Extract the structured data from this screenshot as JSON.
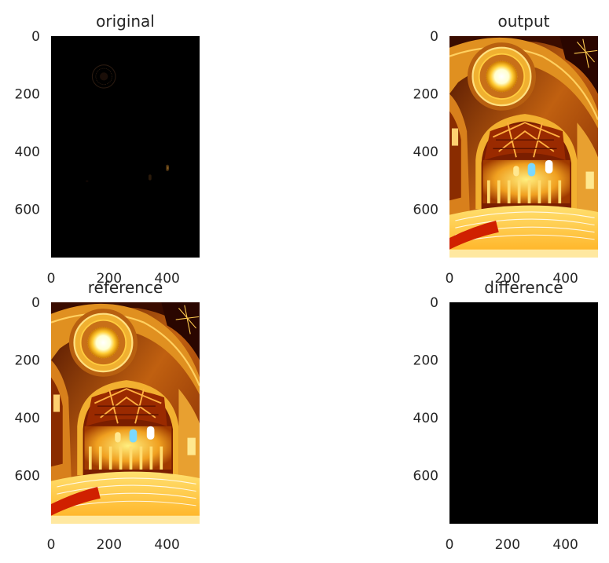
{
  "figure": {
    "background": "#ffffff",
    "image_colormap": "hot (black-red-yellow-white)"
  },
  "chart_data": [
    {
      "type": "heatmap",
      "title": "original",
      "content": "nearly black low-exposure image; faint rose window and two dim lit spots",
      "xticks": [
        0,
        200,
        400
      ],
      "yticks": [
        0,
        200,
        400,
        600
      ],
      "xlim": [
        0,
        512
      ],
      "ylim": [
        768,
        0
      ],
      "grid": false
    },
    {
      "type": "heatmap",
      "title": "output",
      "content": "tone-mapped church interior: rose window, arches, altar and steps in red-orange-yellow",
      "xticks": [
        0,
        200,
        400
      ],
      "yticks": [
        0,
        200,
        400,
        600
      ],
      "xlim": [
        0,
        512
      ],
      "ylim": [
        768,
        0
      ],
      "grid": false
    },
    {
      "type": "heatmap",
      "title": "reference",
      "content": "tone-mapped church interior: rose window, arches, altar and steps in red-orange-yellow",
      "xticks": [
        0,
        200,
        400
      ],
      "yticks": [
        0,
        200,
        400,
        600
      ],
      "xlim": [
        0,
        512
      ],
      "ylim": [
        768,
        0
      ],
      "grid": false
    },
    {
      "type": "heatmap",
      "title": "difference",
      "content": "uniformly black image (no difference)",
      "xticks": [
        0,
        200,
        400
      ],
      "yticks": [
        0,
        200,
        400,
        600
      ],
      "xlim": [
        0,
        512
      ],
      "ylim": [
        768,
        0
      ],
      "grid": false
    }
  ]
}
